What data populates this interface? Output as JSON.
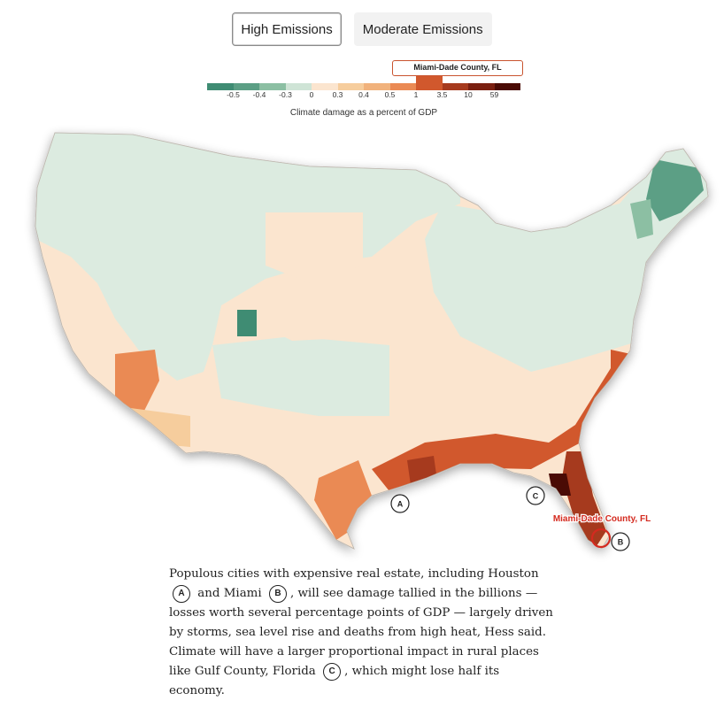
{
  "toggles": [
    {
      "label": "High Emissions",
      "active": true
    },
    {
      "label": "Moderate Emissions",
      "active": false
    }
  ],
  "legend": {
    "callout": "Miami-Dade County, FL",
    "caption": "Climate damage as a percent of GDP",
    "ticks": [
      "-0.5",
      "-0.4",
      "-0.3",
      "0",
      "0.3",
      "0.4",
      "0.5",
      "1",
      "3.5",
      "10",
      "59"
    ],
    "colors": [
      "#3f8c73",
      "#5c9f85",
      "#8cbfa3",
      "#cfe4d6",
      "#fbe5cf",
      "#f6cd9d",
      "#f1b27c",
      "#ea8a54",
      "#d1582d",
      "#a63a1e",
      "#7a1f10",
      "#4a0b05"
    ],
    "highlight_index": 8
  },
  "map": {
    "markers": [
      {
        "letter": "A"
      },
      {
        "letter": "B"
      },
      {
        "letter": "C"
      }
    ],
    "highlight_label": "Miami-Dade County, FL",
    "highlight_color": "#d42a1f"
  },
  "paragraph": {
    "part1": "Populous cities with expensive real estate, including Houston",
    "marker_a": "A",
    "part2": "and Miami",
    "marker_b": "B",
    "part3": ", will see damage tallied in the billions — losses worth several percentage points of GDP — largely driven by storms, sea level rise and deaths from high heat, Hess said. Climate will have a larger proportional impact in rural places like Gulf County, Florida",
    "marker_c": "C",
    "part4": ", which might lose half its economy."
  }
}
